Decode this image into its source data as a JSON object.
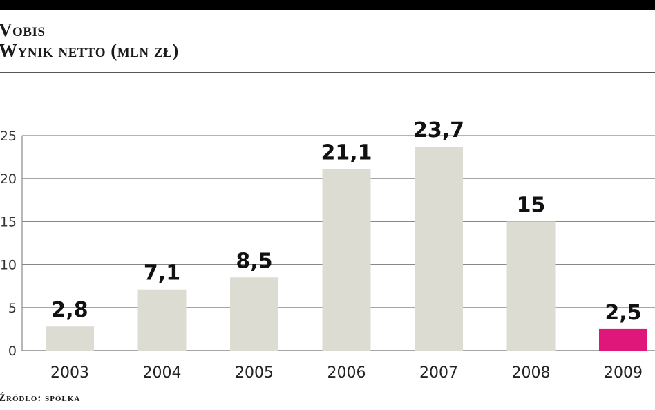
{
  "header": {
    "title": "Vobis",
    "subtitle": "Wynik netto (mln zł)"
  },
  "footer": {
    "source": "Źródło: spółka"
  },
  "colors": {
    "bar": "#dcdcd2",
    "highlight": "#e0177a",
    "grid": "#888888",
    "top_bar": "#000000"
  },
  "chart_data": {
    "type": "bar",
    "title": "Vobis",
    "subtitle": "Wynik netto (mln zł)",
    "categories": [
      "2003",
      "2004",
      "2005",
      "2006",
      "2007",
      "2008",
      "2009"
    ],
    "values": [
      2.8,
      7.1,
      8.5,
      21.1,
      23.7,
      15,
      2.5
    ],
    "value_labels": [
      "2,8",
      "7,1",
      "8,5",
      "21,1",
      "23,7",
      "15",
      "2,5"
    ],
    "highlight_index": 6,
    "yticks": [
      0,
      5,
      10,
      15,
      20,
      25
    ],
    "ytick_labels": [
      "0",
      "5",
      "10",
      "15",
      "20",
      "25"
    ],
    "ylim": [
      0,
      25
    ],
    "grid": true,
    "xlabel": "",
    "ylabel": ""
  }
}
